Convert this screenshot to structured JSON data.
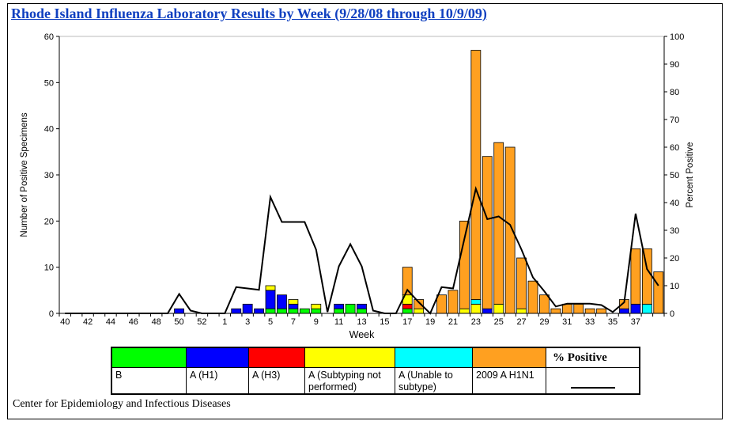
{
  "title": "Rhode Island Influenza Laboratory Results by Week (9/28/08 through 10/9/09)",
  "title_color": "#1040C0",
  "footer": "Center for Epidemiology and Infectious Diseases",
  "legend": {
    "items": [
      {
        "label": "B",
        "color": "#00FF00"
      },
      {
        "label": "A (H1)",
        "color": "#0000FF"
      },
      {
        "label": "A (H3)",
        "color": "#FF0000"
      },
      {
        "label": "A (Subtyping not performed)",
        "color": "#FFFF00"
      },
      {
        "label": "A (Unable to subtype)",
        "color": "#00FFFF"
      },
      {
        "label": "2009 A H1N1",
        "color": "#FFA020"
      },
      {
        "label": "% Positive",
        "symbol": "line"
      }
    ]
  },
  "chart_data": {
    "type": "bar",
    "subtype": "stacked-bars-with-line-overlay",
    "x_axis_label": "Week",
    "y_left": {
      "label": "Number of Positive Specimens",
      "min": 0,
      "max": 60,
      "step": 10
    },
    "y_right": {
      "label": "Percent Positive",
      "min": 0,
      "max": 100,
      "step": 10
    },
    "grid": "top gridline only",
    "legend_position": "bottom table",
    "categories": [
      "40",
      "41",
      "42",
      "43",
      "44",
      "45",
      "46",
      "47",
      "48",
      "49",
      "50",
      "51",
      "52",
      "",
      "1",
      "2",
      "3",
      "4",
      "5",
      "6",
      "7",
      "8",
      "9",
      "10",
      "11",
      "12",
      "13",
      "14",
      "15",
      "16",
      "17",
      "18",
      "19",
      "20",
      "21",
      "22",
      "23",
      "24",
      "25",
      "26",
      "27",
      "28",
      "29",
      "30",
      "31",
      "32",
      "33",
      "34",
      "35",
      "36",
      "37",
      "38",
      "39"
    ],
    "x_label_indices": [
      0,
      2,
      4,
      6,
      8,
      10,
      12,
      14,
      16,
      18,
      20,
      22,
      24,
      26,
      28,
      30,
      32,
      34,
      36,
      38,
      40,
      42,
      44,
      46,
      48,
      50
    ],
    "series": [
      {
        "name": "B",
        "color": "#00FF00",
        "values": [
          0,
          0,
          0,
          0,
          0,
          0,
          0,
          0,
          0,
          0,
          0,
          0,
          0,
          0,
          0,
          0,
          0,
          0,
          1,
          1,
          1,
          1,
          1,
          0,
          1,
          2,
          1,
          0,
          0,
          0,
          1,
          0,
          0,
          0,
          0,
          0,
          0,
          0,
          0,
          0,
          0,
          0,
          0,
          0,
          0,
          0,
          0,
          0,
          0,
          0,
          0,
          0,
          0
        ]
      },
      {
        "name": "A (H1)",
        "color": "#0000FF",
        "values": [
          0,
          0,
          0,
          0,
          0,
          0,
          0,
          0,
          0,
          0,
          1,
          0,
          0,
          0,
          0,
          1,
          2,
          1,
          4,
          3,
          1,
          0,
          0,
          0,
          1,
          0,
          1,
          0,
          0,
          0,
          0,
          0,
          0,
          0,
          0,
          0,
          0,
          1,
          0,
          0,
          0,
          0,
          0,
          0,
          0,
          0,
          0,
          0,
          0,
          1,
          2,
          0,
          0
        ]
      },
      {
        "name": "A (H3)",
        "color": "#FF0000",
        "values": [
          0,
          0,
          0,
          0,
          0,
          0,
          0,
          0,
          0,
          0,
          0,
          0,
          0,
          0,
          0,
          0,
          0,
          0,
          0,
          0,
          0,
          0,
          0,
          0,
          0,
          0,
          0,
          0,
          0,
          0,
          1,
          0,
          0,
          0,
          0,
          0,
          0,
          0,
          0,
          0,
          0,
          0,
          0,
          0,
          0,
          0,
          0,
          0,
          0,
          0,
          0,
          0,
          0
        ]
      },
      {
        "name": "A (Subtyping not performed)",
        "color": "#FFFF00",
        "values": [
          0,
          0,
          0,
          0,
          0,
          0,
          0,
          0,
          0,
          0,
          0,
          0,
          0,
          0,
          0,
          0,
          0,
          0,
          1,
          0,
          1,
          0,
          1,
          0,
          0,
          0,
          0,
          0,
          0,
          0,
          2,
          1,
          0,
          0,
          0,
          1,
          2,
          0,
          2,
          0,
          1,
          0,
          0,
          0,
          0,
          0,
          0,
          0,
          0,
          0,
          0,
          0,
          0
        ]
      },
      {
        "name": "A (Unable to subtype)",
        "color": "#00FFFF",
        "values": [
          0,
          0,
          0,
          0,
          0,
          0,
          0,
          0,
          0,
          0,
          0,
          0,
          0,
          0,
          0,
          0,
          0,
          0,
          0,
          0,
          0,
          0,
          0,
          0,
          0,
          0,
          0,
          0,
          0,
          0,
          0,
          0,
          0,
          0,
          0,
          0,
          1,
          0,
          0,
          0,
          0,
          0,
          0,
          0,
          0,
          0,
          0,
          0,
          0,
          0,
          0,
          2,
          0
        ]
      },
      {
        "name": "2009 A H1N1",
        "color": "#FFA020",
        "values": [
          0,
          0,
          0,
          0,
          0,
          0,
          0,
          0,
          0,
          0,
          0,
          0,
          0,
          0,
          0,
          0,
          0,
          0,
          0,
          0,
          0,
          0,
          0,
          0,
          0,
          0,
          0,
          0,
          0,
          0,
          6,
          2,
          0,
          4,
          5,
          19,
          54,
          33,
          35,
          36,
          11,
          7,
          4,
          1,
          2,
          2,
          1,
          1,
          0,
          2,
          12,
          12,
          9
        ]
      }
    ],
    "line_series": {
      "name": "% Positive",
      "color": "#000000",
      "axis": "right",
      "values": [
        0,
        0,
        0,
        0,
        0,
        0,
        0,
        0,
        0,
        0,
        7,
        1,
        0,
        0,
        0,
        9.5,
        9,
        8.5,
        42,
        33,
        33,
        33,
        23,
        0.5,
        17,
        25,
        17,
        1,
        0,
        0,
        8.5,
        4,
        0,
        9.5,
        9,
        27,
        45,
        34,
        35,
        32,
        23,
        13,
        8,
        2.5,
        3.5,
        3.5,
        3.5,
        3,
        0.5,
        4,
        36,
        16,
        10
      ]
    }
  }
}
